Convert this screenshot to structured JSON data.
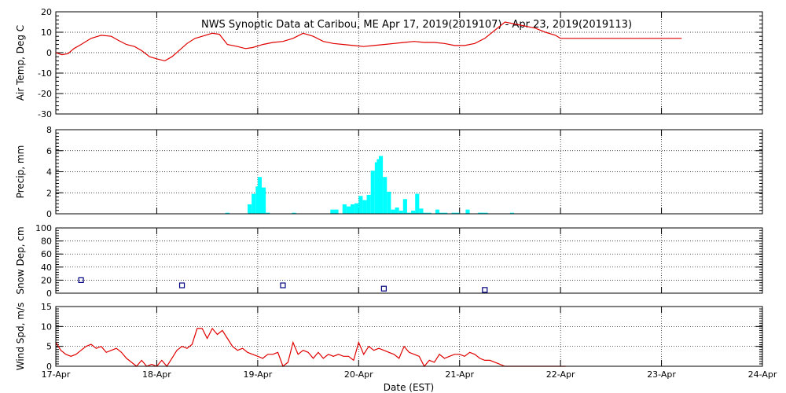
{
  "chart_data": {
    "type": "line",
    "title": "NWS Synoptic Data at Caribou, ME   Apr 17, 2019(2019107) - Apr 23, 2019(2019113)",
    "xlabel": "Date (EST)",
    "x_ticks": [
      "17-Apr",
      "18-Apr",
      "19-Apr",
      "20-Apr",
      "21-Apr",
      "22-Apr",
      "23-Apr",
      "24-Apr"
    ],
    "x_range_days": [
      0,
      7
    ],
    "grid": true,
    "colors": {
      "temp": "#e00000",
      "precip": "#00ffff",
      "snow": "#000080",
      "wind": "#e00000"
    },
    "panels": [
      {
        "key": "temp",
        "type": "line",
        "ylabel": "Air Temp, Deg C",
        "ylim": [
          -30,
          20
        ],
        "yticks": [
          20,
          10,
          0,
          -10,
          -20,
          -30
        ],
        "x": [
          0,
          0.06,
          0.12,
          0.18,
          0.25,
          0.35,
          0.45,
          0.55,
          0.62,
          0.7,
          0.78,
          0.85,
          0.93,
          1.0,
          1.08,
          1.15,
          1.22,
          1.3,
          1.38,
          1.45,
          1.55,
          1.62,
          1.7,
          1.8,
          1.88,
          1.95,
          2.05,
          2.15,
          2.25,
          2.35,
          2.45,
          2.55,
          2.65,
          2.75,
          2.85,
          2.95,
          3.05,
          3.15,
          3.25,
          3.35,
          3.45,
          3.55,
          3.65,
          3.75,
          3.85,
          3.95,
          4.05,
          4.15,
          4.25,
          4.35,
          4.45,
          4.55,
          4.65,
          4.75,
          4.85,
          4.95,
          5.0,
          5.1,
          5.2,
          5.3,
          5.4,
          5.5,
          5.6,
          5.7,
          5.8,
          5.9,
          6.0,
          6.1,
          6.2
        ],
        "y": [
          0,
          -1,
          -0.5,
          2,
          4,
          7,
          8.5,
          8,
          6,
          4,
          3,
          1,
          -2,
          -3,
          -4,
          -2,
          1,
          4.5,
          7,
          8,
          9.5,
          9,
          4,
          3,
          2,
          2.5,
          4,
          5,
          5.5,
          7,
          9.5,
          8,
          5.5,
          4.5,
          4,
          3.5,
          3,
          3.5,
          4,
          4.5,
          5,
          5.5,
          5,
          5,
          4.5,
          3.5,
          3.5,
          4.5,
          7,
          11,
          15,
          14,
          13,
          12,
          10,
          8.5,
          7,
          7,
          7,
          7,
          7,
          7,
          7,
          7,
          7,
          7,
          7,
          7,
          7
        ]
      },
      {
        "key": "precip",
        "type": "bar",
        "ylabel": "Precip, mm",
        "ylim": [
          0,
          8
        ],
        "yticks": [
          8,
          6,
          4,
          2,
          0
        ],
        "x": [
          1.68,
          1.9,
          1.94,
          1.98,
          2.0,
          2.04,
          2.08,
          2.34,
          2.72,
          2.76,
          2.84,
          2.88,
          2.92,
          2.96,
          3.0,
          3.04,
          3.08,
          3.12,
          3.16,
          3.18,
          3.2,
          3.24,
          3.28,
          3.32,
          3.36,
          3.4,
          3.44,
          3.48,
          3.52,
          3.56,
          3.6,
          3.64,
          3.68,
          3.76,
          3.8,
          3.84,
          3.92,
          3.96,
          4.06,
          4.18,
          4.2,
          4.24,
          4.5
        ],
        "y": [
          0.1,
          0.9,
          1.9,
          2.6,
          3.5,
          2.5,
          0.1,
          0.1,
          0.4,
          0.4,
          0.9,
          0.7,
          0.9,
          1.0,
          1.7,
          1.3,
          1.8,
          4.1,
          4.9,
          5.2,
          5.5,
          3.5,
          2.1,
          0.4,
          0.6,
          0.3,
          1.4,
          0.1,
          0.3,
          1.9,
          0.5,
          0.1,
          0.1,
          0.4,
          0.1,
          0.1,
          0.1,
          0.1,
          0.4,
          0.1,
          0.1,
          0.1,
          0.1
        ]
      },
      {
        "key": "snow",
        "type": "scatter",
        "ylabel": "Snow Dep, cm",
        "ylim": [
          0,
          100
        ],
        "yticks": [
          100,
          80,
          60,
          40,
          20,
          0
        ],
        "x": [
          0.25,
          1.25,
          2.25,
          3.25,
          4.25
        ],
        "y": [
          20,
          12,
          12,
          7,
          5
        ]
      },
      {
        "key": "wind",
        "type": "line",
        "ylabel": "Wind Spd, m/s",
        "ylim": [
          0,
          15
        ],
        "yticks": [
          15,
          10,
          5,
          0
        ],
        "x": [
          0,
          0.05,
          0.1,
          0.15,
          0.2,
          0.25,
          0.3,
          0.35,
          0.4,
          0.45,
          0.5,
          0.55,
          0.6,
          0.65,
          0.7,
          0.75,
          0.8,
          0.85,
          0.9,
          0.95,
          1.0,
          1.05,
          1.1,
          1.15,
          1.2,
          1.25,
          1.3,
          1.35,
          1.4,
          1.45,
          1.5,
          1.55,
          1.6,
          1.65,
          1.7,
          1.75,
          1.8,
          1.85,
          1.9,
          1.95,
          2.0,
          2.05,
          2.1,
          2.15,
          2.2,
          2.25,
          2.3,
          2.35,
          2.4,
          2.45,
          2.5,
          2.55,
          2.6,
          2.65,
          2.7,
          2.75,
          2.8,
          2.85,
          2.9,
          2.95,
          3.0,
          3.05,
          3.1,
          3.15,
          3.2,
          3.25,
          3.3,
          3.35,
          3.4,
          3.45,
          3.5,
          3.55,
          3.6,
          3.65,
          3.7,
          3.75,
          3.8,
          3.85,
          3.9,
          3.95,
          4.0,
          4.05,
          4.1,
          4.15,
          4.2,
          4.25,
          4.3,
          4.35,
          4.4,
          4.45,
          4.5,
          4.55,
          4.6,
          4.65,
          4.7,
          4.75,
          4.8,
          4.85,
          4.9,
          4.95,
          5.0,
          5.05
        ],
        "y": [
          6,
          4,
          3,
          2.5,
          3,
          4,
          5,
          5.5,
          4.5,
          5,
          3.5,
          4,
          4.5,
          3.5,
          2,
          1,
          0,
          1.5,
          0,
          0.5,
          0,
          1.5,
          0,
          2,
          4,
          5,
          4.5,
          5.5,
          9.5,
          9.5,
          7,
          9.5,
          8,
          9,
          7,
          5,
          4,
          4.5,
          3.5,
          3,
          2.5,
          2,
          3,
          3,
          3.5,
          0,
          1,
          6,
          3,
          4,
          3.5,
          2,
          3.5,
          2,
          3,
          2.5,
          3,
          2.5,
          2.5,
          1.5,
          6,
          3,
          5,
          4,
          4.5,
          4,
          3.5,
          3,
          2,
          5,
          3.5,
          3,
          2.5,
          0,
          1.5,
          1,
          3,
          2,
          2.5,
          3,
          3,
          2.5,
          3.5,
          3,
          2,
          1.5,
          1.5,
          1,
          0.5,
          0,
          0,
          0,
          0,
          0,
          0,
          0,
          0,
          0,
          0,
          0,
          0,
          0
        ]
      }
    ]
  }
}
